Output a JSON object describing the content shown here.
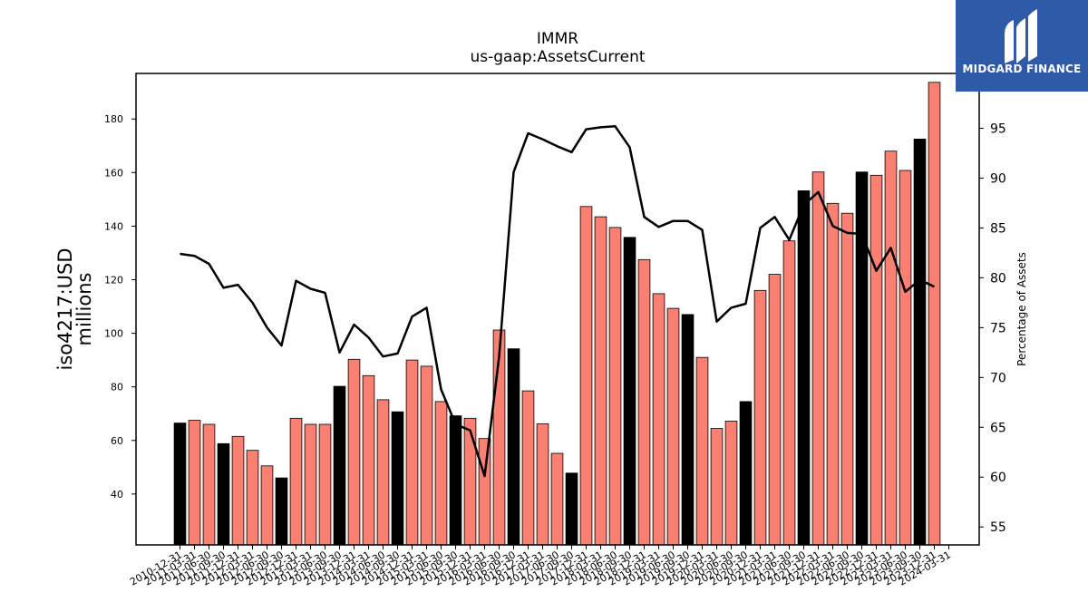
{
  "chart_data": {
    "type": "bar",
    "title": "IMMR",
    "subtitle": "us-gaap:AssetsCurrent",
    "ylabel": "iso4217:USD\nmillions",
    "ylabel_lines": [
      "iso4217:USD",
      "millions"
    ],
    "y2label": "Percentage of Assets",
    "ylim": [
      21,
      197
    ],
    "y2lim": [
      53.2,
      100.5
    ],
    "yticks": [
      40,
      60,
      80,
      100,
      120,
      140,
      160,
      180
    ],
    "y2ticks": [
      55,
      60,
      65,
      70,
      75,
      80,
      85,
      90,
      95
    ],
    "colors": {
      "bar_default": "#fa8072",
      "bar_highlight": "#000000",
      "line": "#000000"
    },
    "categories": [
      "2010-12-31",
      "2011-03-31",
      "2011-06-30",
      "2011-09-30",
      "2011-12-31",
      "2012-03-31",
      "2012-06-30",
      "2012-09-30",
      "2012-12-31",
      "2013-03-31",
      "2013-06-30",
      "2013-09-30",
      "2013-12-31",
      "2014-03-31",
      "2014-06-30",
      "2014-09-30",
      "2014-12-31",
      "2015-03-31",
      "2015-06-30",
      "2015-09-30",
      "2015-12-31",
      "2016-03-31",
      "2016-06-30",
      "2016-09-30",
      "2016-12-31",
      "2017-03-31",
      "2017-06-30",
      "2017-09-30",
      "2017-12-31",
      "2018-03-31",
      "2018-06-30",
      "2018-09-30",
      "2018-12-31",
      "2019-03-31",
      "2019-06-30",
      "2019-09-30",
      "2019-12-31",
      "2020-03-31",
      "2020-06-30",
      "2020-09-30",
      "2020-12-31",
      "2021-03-31",
      "2021-06-30",
      "2021-09-30",
      "2021-12-31",
      "2022-03-31",
      "2022-06-30",
      "2022-09-30",
      "2022-12-31",
      "2023-03-31",
      "2023-06-30",
      "2023-09-30",
      "2023-12-31",
      "2024-03-31"
    ],
    "series": [
      {
        "type": "bar",
        "values": [
          66.5,
          67.5,
          66,
          58.8,
          61.5,
          56.3,
          50.5,
          46,
          68.3,
          66,
          66,
          80.2,
          90.3,
          84.2,
          75.2,
          70.7,
          90,
          87.7,
          74.5,
          69.2,
          68.3,
          60.7,
          101.2,
          94.2,
          78.5,
          66.2,
          55.2,
          47.8,
          147.3,
          143.5,
          139.5,
          135.8,
          127.5,
          114.8,
          109.3,
          107,
          91,
          64.5,
          67.2,
          74.5,
          116,
          122,
          134.5,
          153.2,
          160.2,
          148.5,
          144.8,
          160.2,
          159,
          168,
          160.8,
          172.5,
          193.7,
          null
        ],
        "highlight": [
          true,
          false,
          false,
          true,
          false,
          false,
          false,
          true,
          false,
          false,
          false,
          true,
          false,
          false,
          false,
          true,
          false,
          false,
          false,
          true,
          false,
          false,
          false,
          true,
          false,
          false,
          false,
          true,
          false,
          false,
          false,
          true,
          false,
          false,
          false,
          true,
          false,
          false,
          false,
          true,
          false,
          false,
          false,
          true,
          false,
          false,
          false,
          true,
          false,
          false,
          false,
          true,
          false,
          false
        ]
      },
      {
        "type": "line",
        "axis": "right",
        "values": [
          82.4,
          82.2,
          81.4,
          79,
          79.3,
          77.5,
          75,
          73.2,
          79.7,
          78.9,
          78.5,
          72.5,
          75.3,
          74,
          72.1,
          72.4,
          76.1,
          77,
          68.8,
          65.3,
          64.7,
          60.1,
          72.1,
          90.6,
          94.5,
          93.9,
          93.2,
          92.6,
          94.9,
          95.1,
          95.2,
          93.1,
          86.1,
          85.1,
          85.7,
          85.7,
          84.8,
          75.6,
          77,
          77.4,
          85,
          86.1,
          83.8,
          87.3,
          88.6,
          85.2,
          84.5,
          84.4,
          80.7,
          83,
          78.6,
          79.8,
          79.1,
          null
        ]
      }
    ]
  },
  "logo": {
    "text": "MIDGARD FINANCE"
  }
}
